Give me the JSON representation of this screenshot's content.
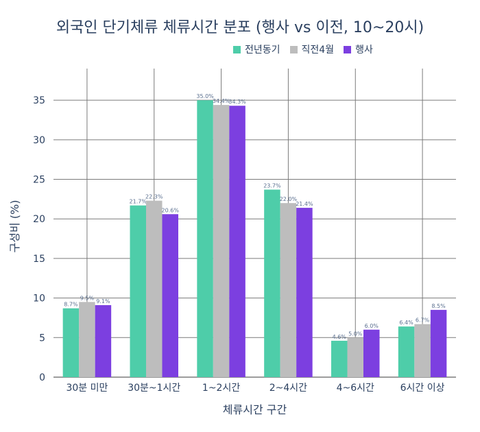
{
  "chart_data": {
    "type": "bar",
    "title": "외국인 단기체류 체류시간 분포 (행사 vs 이전, 10~20시)",
    "xlabel": "체류시간 구간",
    "ylabel": "구성비 (%)",
    "ylim": [
      0,
      39
    ],
    "yticks": [
      0,
      5,
      10,
      15,
      20,
      25,
      30,
      35
    ],
    "grid": true,
    "legend_position": "top-right",
    "categories": [
      "30분 미만",
      "30분~1시간",
      "1~2시간",
      "2~4시간",
      "4~6시간",
      "6시간 이상"
    ],
    "series": [
      {
        "name": "전년동기",
        "color": "#4ecda9",
        "values": [
          8.7,
          21.7,
          35.0,
          23.7,
          4.6,
          6.4
        ],
        "labels": [
          "8.7%",
          "21.7%",
          "35.0%",
          "23.7%",
          "4.6%",
          "6.4%"
        ]
      },
      {
        "name": "직전4월",
        "color": "#bdbdbd",
        "values": [
          9.5,
          22.3,
          34.4,
          22.0,
          5.0,
          6.7
        ],
        "labels": [
          "9.5%",
          "22.3%",
          "34.4%",
          "22.0%",
          "5.0%",
          "6.7%"
        ]
      },
      {
        "name": "행사",
        "color": "#7c3fe0",
        "values": [
          9.1,
          20.6,
          34.3,
          21.4,
          6.0,
          8.5
        ],
        "labels": [
          "9.1%",
          "20.6%",
          "34.3%",
          "21.4%",
          "6.0%",
          "8.5%"
        ]
      }
    ]
  }
}
